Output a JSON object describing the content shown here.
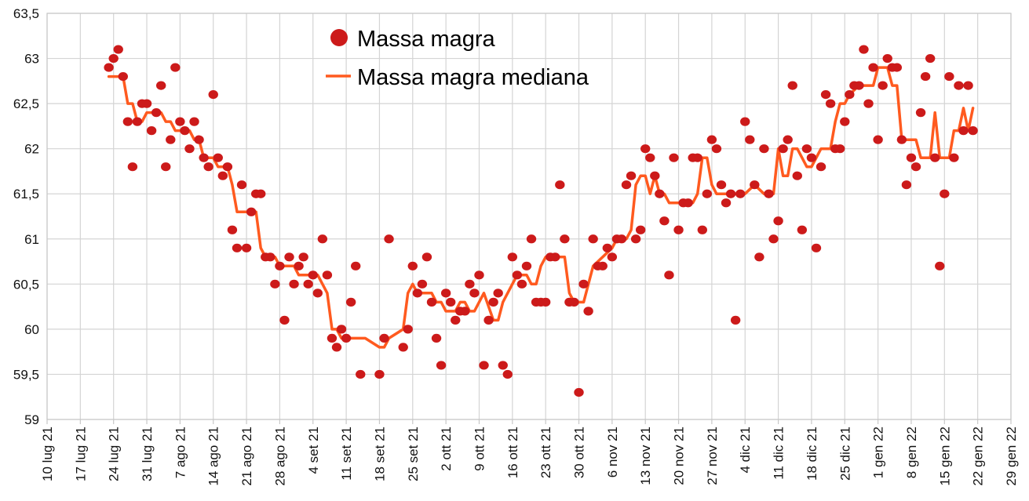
{
  "chart_data": {
    "type": "scatter+line",
    "title": "",
    "xlabel": "",
    "ylabel": "",
    "x_unit": "days since 10 lug 21",
    "xlim": [
      0,
      203
    ],
    "ylim": [
      59,
      63.5
    ],
    "grid": true,
    "legend_position": "top-center",
    "y_ticks": [
      {
        "value": 59,
        "label": "59"
      },
      {
        "value": 59.5,
        "label": "59,5"
      },
      {
        "value": 60,
        "label": "60"
      },
      {
        "value": 60.5,
        "label": "60,5"
      },
      {
        "value": 61,
        "label": "61"
      },
      {
        "value": 61.5,
        "label": "61,5"
      },
      {
        "value": 62,
        "label": "62"
      },
      {
        "value": 62.5,
        "label": "62,5"
      },
      {
        "value": 63,
        "label": "63"
      },
      {
        "value": 63.5,
        "label": "63,5"
      }
    ],
    "x_ticks": [
      "10 lug 21",
      "17 lug 21",
      "24 lug 21",
      "31 lug 21",
      "7 ago 21",
      "14 ago 21",
      "21 ago 21",
      "28 ago 21",
      "4 set 21",
      "11 set 21",
      "18 set 21",
      "25 set 21",
      "2 ott 21",
      "9 ott 21",
      "16 ott 21",
      "23 ott 21",
      "30 ott 21",
      "6 nov 21",
      "13 nov 21",
      "20 nov 21",
      "27 nov 21",
      "4 dic 21",
      "11 dic 21",
      "18 dic 21",
      "25 dic 21",
      "1 gen 22",
      "8 gen 22",
      "15 gen 22",
      "22 gen 22",
      "29 gen 22"
    ],
    "x_tick_step_days": 7,
    "series": [
      {
        "name": "Massa magra",
        "kind": "scatter",
        "color": "#cc1a1a",
        "points": [
          [
            13,
            62.9
          ],
          [
            14,
            63.0
          ],
          [
            15,
            63.1
          ],
          [
            16,
            62.8
          ],
          [
            17,
            62.3
          ],
          [
            18,
            61.8
          ],
          [
            19,
            62.3
          ],
          [
            20,
            62.5
          ],
          [
            21,
            62.5
          ],
          [
            22,
            62.2
          ],
          [
            23,
            62.4
          ],
          [
            24,
            62.7
          ],
          [
            25,
            61.8
          ],
          [
            26,
            62.1
          ],
          [
            27,
            62.9
          ],
          [
            28,
            62.3
          ],
          [
            29,
            62.2
          ],
          [
            30,
            62.0
          ],
          [
            31,
            62.3
          ],
          [
            32,
            62.1
          ],
          [
            33,
            61.9
          ],
          [
            34,
            61.8
          ],
          [
            35,
            62.6
          ],
          [
            36,
            61.9
          ],
          [
            37,
            61.7
          ],
          [
            38,
            61.8
          ],
          [
            39,
            61.1
          ],
          [
            40,
            60.9
          ],
          [
            41,
            61.6
          ],
          [
            42,
            60.9
          ],
          [
            43,
            61.3
          ],
          [
            44,
            61.5
          ],
          [
            45,
            61.5
          ],
          [
            46,
            60.8
          ],
          [
            47,
            60.8
          ],
          [
            48,
            60.5
          ],
          [
            49,
            60.7
          ],
          [
            50,
            60.1
          ],
          [
            51,
            60.8
          ],
          [
            52,
            60.5
          ],
          [
            53,
            60.7
          ],
          [
            54,
            60.8
          ],
          [
            55,
            60.5
          ],
          [
            56,
            60.6
          ],
          [
            57,
            60.4
          ],
          [
            58,
            61.0
          ],
          [
            59,
            60.6
          ],
          [
            60,
            59.9
          ],
          [
            61,
            59.8
          ],
          [
            62,
            60.0
          ],
          [
            63,
            59.9
          ],
          [
            64,
            60.3
          ],
          [
            65,
            60.7
          ],
          [
            66,
            59.5
          ],
          [
            70,
            59.5
          ],
          [
            71,
            59.9
          ],
          [
            72,
            61.0
          ],
          [
            75,
            59.8
          ],
          [
            76,
            60.0
          ],
          [
            77,
            60.7
          ],
          [
            78,
            60.4
          ],
          [
            79,
            60.5
          ],
          [
            80,
            60.8
          ],
          [
            81,
            60.3
          ],
          [
            82,
            59.9
          ],
          [
            83,
            59.6
          ],
          [
            84,
            60.4
          ],
          [
            85,
            60.3
          ],
          [
            86,
            60.1
          ],
          [
            87,
            60.2
          ],
          [
            88,
            60.2
          ],
          [
            89,
            60.5
          ],
          [
            90,
            60.4
          ],
          [
            91,
            60.6
          ],
          [
            92,
            59.6
          ],
          [
            93,
            60.1
          ],
          [
            94,
            60.3
          ],
          [
            95,
            60.4
          ],
          [
            96,
            59.6
          ],
          [
            97,
            59.5
          ],
          [
            98,
            60.8
          ],
          [
            99,
            60.6
          ],
          [
            100,
            60.5
          ],
          [
            101,
            60.7
          ],
          [
            102,
            61.0
          ],
          [
            103,
            60.3
          ],
          [
            104,
            60.3
          ],
          [
            105,
            60.3
          ],
          [
            106,
            60.8
          ],
          [
            107,
            60.8
          ],
          [
            108,
            61.6
          ],
          [
            109,
            61.0
          ],
          [
            110,
            60.3
          ],
          [
            111,
            60.3
          ],
          [
            112,
            59.3
          ],
          [
            113,
            60.5
          ],
          [
            114,
            60.2
          ],
          [
            115,
            61.0
          ],
          [
            116,
            60.7
          ],
          [
            117,
            60.7
          ],
          [
            118,
            60.9
          ],
          [
            119,
            60.8
          ],
          [
            120,
            61.0
          ],
          [
            121,
            61.0
          ],
          [
            122,
            61.6
          ],
          [
            123,
            61.7
          ],
          [
            124,
            61.0
          ],
          [
            125,
            61.1
          ],
          [
            126,
            62.0
          ],
          [
            127,
            61.9
          ],
          [
            128,
            61.7
          ],
          [
            129,
            61.5
          ],
          [
            130,
            61.2
          ],
          [
            131,
            60.6
          ],
          [
            132,
            61.9
          ],
          [
            133,
            61.1
          ],
          [
            134,
            61.4
          ],
          [
            135,
            61.4
          ],
          [
            136,
            61.9
          ],
          [
            137,
            61.9
          ],
          [
            138,
            61.1
          ],
          [
            139,
            61.5
          ],
          [
            140,
            62.1
          ],
          [
            141,
            62.0
          ],
          [
            142,
            61.6
          ],
          [
            143,
            61.4
          ],
          [
            144,
            61.5
          ],
          [
            145,
            60.1
          ],
          [
            146,
            61.5
          ],
          [
            147,
            62.3
          ],
          [
            148,
            62.1
          ],
          [
            149,
            61.6
          ],
          [
            150,
            60.8
          ],
          [
            151,
            62.0
          ],
          [
            152,
            61.5
          ],
          [
            153,
            61.0
          ],
          [
            154,
            61.2
          ],
          [
            155,
            62.0
          ],
          [
            156,
            62.1
          ],
          [
            157,
            62.7
          ],
          [
            158,
            61.7
          ],
          [
            159,
            61.1
          ],
          [
            160,
            62.0
          ],
          [
            161,
            61.9
          ],
          [
            162,
            60.9
          ],
          [
            163,
            61.8
          ],
          [
            164,
            62.6
          ],
          [
            165,
            62.5
          ],
          [
            166,
            62.0
          ],
          [
            167,
            62.0
          ],
          [
            168,
            62.3
          ],
          [
            169,
            62.6
          ],
          [
            170,
            62.7
          ],
          [
            171,
            62.7
          ],
          [
            172,
            63.1
          ],
          [
            173,
            62.5
          ],
          [
            174,
            62.9
          ],
          [
            175,
            62.1
          ],
          [
            176,
            62.7
          ],
          [
            177,
            63.0
          ],
          [
            178,
            62.9
          ],
          [
            179,
            62.9
          ],
          [
            180,
            62.1
          ],
          [
            181,
            61.6
          ],
          [
            182,
            61.9
          ],
          [
            183,
            61.8
          ],
          [
            184,
            62.4
          ],
          [
            185,
            62.8
          ],
          [
            186,
            63.0
          ],
          [
            187,
            61.9
          ],
          [
            188,
            60.7
          ],
          [
            189,
            61.5
          ],
          [
            190,
            62.8
          ],
          [
            191,
            61.9
          ],
          [
            192,
            62.7
          ],
          [
            193,
            62.2
          ],
          [
            194,
            62.7
          ],
          [
            195,
            62.2
          ]
        ]
      },
      {
        "name": "Massa magra mediana",
        "kind": "line",
        "color": "#ff5a1f",
        "points": [
          [
            13,
            62.8
          ],
          [
            16,
            62.8
          ],
          [
            17,
            62.5
          ],
          [
            18,
            62.5
          ],
          [
            19,
            62.3
          ],
          [
            20,
            62.3
          ],
          [
            21,
            62.4
          ],
          [
            24,
            62.4
          ],
          [
            25,
            62.3
          ],
          [
            26,
            62.3
          ],
          [
            27,
            62.2
          ],
          [
            30,
            62.2
          ],
          [
            31,
            62.1
          ],
          [
            32,
            62.1
          ],
          [
            33,
            61.9
          ],
          [
            35,
            61.9
          ],
          [
            36,
            61.8
          ],
          [
            38,
            61.8
          ],
          [
            39,
            61.6
          ],
          [
            40,
            61.3
          ],
          [
            44,
            61.3
          ],
          [
            45,
            60.9
          ],
          [
            46,
            60.8
          ],
          [
            48,
            60.8
          ],
          [
            49,
            60.7
          ],
          [
            52,
            60.7
          ],
          [
            53,
            60.6
          ],
          [
            57,
            60.6
          ],
          [
            59,
            60.4
          ],
          [
            60,
            60.0
          ],
          [
            61,
            60.0
          ],
          [
            62,
            59.9
          ],
          [
            67,
            59.9
          ],
          [
            70,
            59.8
          ],
          [
            71,
            59.8
          ],
          [
            72,
            59.9
          ],
          [
            75,
            60.0
          ],
          [
            76,
            60.4
          ],
          [
            77,
            60.5
          ],
          [
            78,
            60.4
          ],
          [
            81,
            60.4
          ],
          [
            82,
            60.3
          ],
          [
            83,
            60.3
          ],
          [
            84,
            60.2
          ],
          [
            86,
            60.2
          ],
          [
            87,
            60.3
          ],
          [
            88,
            60.3
          ],
          [
            89,
            60.2
          ],
          [
            90,
            60.2
          ],
          [
            92,
            60.4
          ],
          [
            94,
            60.1
          ],
          [
            95,
            60.1
          ],
          [
            96,
            60.3
          ],
          [
            98,
            60.5
          ],
          [
            99,
            60.6
          ],
          [
            101,
            60.6
          ],
          [
            102,
            60.5
          ],
          [
            103,
            60.5
          ],
          [
            104,
            60.7
          ],
          [
            105,
            60.8
          ],
          [
            109,
            60.8
          ],
          [
            110,
            60.4
          ],
          [
            111,
            60.3
          ],
          [
            113,
            60.3
          ],
          [
            115,
            60.7
          ],
          [
            117,
            60.8
          ],
          [
            119,
            60.9
          ],
          [
            120,
            61.0
          ],
          [
            122,
            61.0
          ],
          [
            123,
            61.1
          ],
          [
            124,
            61.6
          ],
          [
            125,
            61.7
          ],
          [
            126,
            61.7
          ],
          [
            127,
            61.5
          ],
          [
            128,
            61.7
          ],
          [
            129,
            61.5
          ],
          [
            130,
            61.5
          ],
          [
            131,
            61.4
          ],
          [
            136,
            61.4
          ],
          [
            137,
            61.5
          ],
          [
            138,
            61.9
          ],
          [
            139,
            61.9
          ],
          [
            140,
            61.6
          ],
          [
            141,
            61.5
          ],
          [
            147,
            61.5
          ],
          [
            149,
            61.6
          ],
          [
            151,
            61.5
          ],
          [
            153,
            61.5
          ],
          [
            154,
            62.0
          ],
          [
            155,
            61.7
          ],
          [
            156,
            61.7
          ],
          [
            157,
            62.0
          ],
          [
            158,
            62.0
          ],
          [
            160,
            61.8
          ],
          [
            161,
            61.8
          ],
          [
            163,
            62.0
          ],
          [
            165,
            62.0
          ],
          [
            166,
            62.3
          ],
          [
            167,
            62.5
          ],
          [
            168,
            62.5
          ],
          [
            169,
            62.6
          ],
          [
            171,
            62.7
          ],
          [
            174,
            62.7
          ],
          [
            175,
            62.9
          ],
          [
            177,
            62.9
          ],
          [
            178,
            62.7
          ],
          [
            179,
            62.7
          ],
          [
            180,
            62.1
          ],
          [
            183,
            62.1
          ],
          [
            184,
            61.9
          ],
          [
            186,
            61.9
          ],
          [
            187,
            62.4
          ],
          [
            188,
            61.9
          ],
          [
            190,
            61.9
          ],
          [
            191,
            62.2
          ],
          [
            192,
            62.2
          ],
          [
            193,
            62.45
          ],
          [
            194,
            62.2
          ],
          [
            195,
            62.45
          ]
        ]
      }
    ]
  },
  "legend": {
    "items": [
      {
        "label": "Massa magra"
      },
      {
        "label": "Massa magra mediana"
      }
    ]
  }
}
